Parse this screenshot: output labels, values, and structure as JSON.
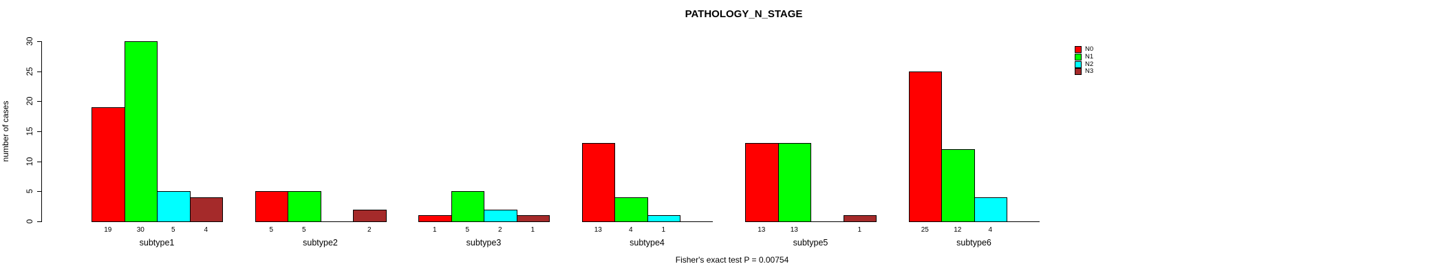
{
  "chart_data": {
    "type": "bar",
    "title": "PATHOLOGY_N_STAGE",
    "ylabel": "number of cases",
    "footer": "Fisher's exact test P = 0.00754",
    "categories": [
      "subtype1",
      "subtype2",
      "subtype3",
      "subtype4",
      "subtype5",
      "subtype6"
    ],
    "series": [
      {
        "name": "N0",
        "color": "#FF0000",
        "values": [
          19,
          5,
          1,
          13,
          13,
          25
        ]
      },
      {
        "name": "N1",
        "color": "#00FF00",
        "values": [
          30,
          5,
          5,
          4,
          13,
          12
        ]
      },
      {
        "name": "N2",
        "color": "#00FFFF",
        "values": [
          5,
          0,
          2,
          1,
          0,
          4
        ]
      },
      {
        "name": "N3",
        "color": "#A52A2A",
        "values": [
          4,
          2,
          1,
          0,
          1,
          0
        ]
      }
    ],
    "bar_value_labels": [
      [
        "19",
        "30",
        "5",
        "4"
      ],
      [
        "5",
        "5",
        "",
        "2"
      ],
      [
        "1",
        "5",
        "2",
        "1"
      ],
      [
        "13",
        "4",
        "1",
        ""
      ],
      [
        "13",
        "13",
        "",
        "1"
      ],
      [
        "25",
        "12",
        "4",
        ""
      ]
    ],
    "yticks": [
      0,
      5,
      10,
      15,
      20,
      25,
      30
    ],
    "ylim": [
      0,
      30
    ],
    "legend_position": "right",
    "grid": false,
    "axis_color": "#000000",
    "background_color": "#FFFFFF"
  }
}
